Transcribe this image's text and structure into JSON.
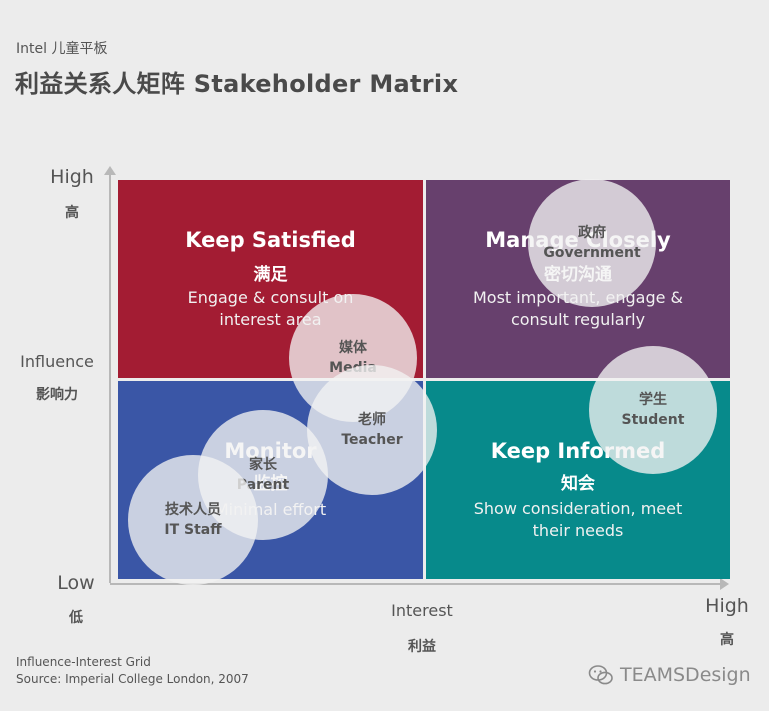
{
  "header": {
    "subtitle": "Intel 儿童平板",
    "title": "利益关系人矩阵 Stakeholder Matrix"
  },
  "axes": {
    "y_high_en": "High",
    "y_high_zh": "高",
    "y_label_en": "Influence",
    "y_label_zh": "影响力",
    "low_en": "Low",
    "low_zh": "低",
    "x_label_en": "Interest",
    "x_label_zh": "利益",
    "x_high_en": "High",
    "x_high_zh": "高"
  },
  "quadrants": {
    "top_left": {
      "title": "Keep Satisfied",
      "title_zh": "满足",
      "desc_line1": "Engage & consult on",
      "desc_line2": "interest area",
      "color": "#a31c33"
    },
    "top_right": {
      "title": "Manage Closely",
      "title_zh": "密切沟通",
      "desc_line1": "Most important, engage &",
      "desc_line2": "consult regularly",
      "color": "#67406d"
    },
    "bottom_left": {
      "title": "Monitor",
      "title_zh": "监控",
      "desc_line1": "Minimal effort",
      "color": "#3a56a6"
    },
    "bottom_right": {
      "title": "Keep Informed",
      "title_zh": "知会",
      "desc_line1": "Show consideration, meet",
      "desc_line2": "their needs",
      "color": "#078a8b"
    }
  },
  "stakeholders": [
    {
      "zh": "政府",
      "en": "Government"
    },
    {
      "zh": "媒体",
      "en": "Media"
    },
    {
      "zh": "学生",
      "en": "Student"
    },
    {
      "zh": "老师",
      "en": "Teacher"
    },
    {
      "zh": "家长",
      "en": "Parent"
    },
    {
      "zh": "技术人员",
      "en": "IT Staff"
    }
  ],
  "footer": {
    "line1": "Influence-Interest Grid",
    "line2": "Source: Imperial College London, 2007",
    "brand": "TEAMSDesign",
    "brand_icon": "wechat-icon"
  }
}
